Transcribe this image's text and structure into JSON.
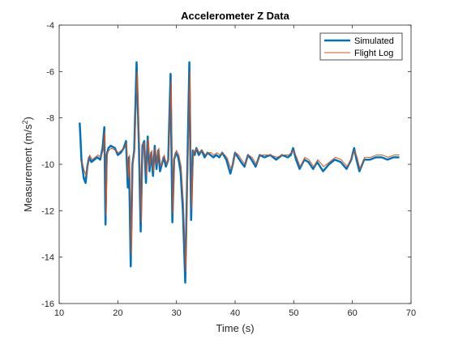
{
  "chart_data": {
    "type": "line",
    "title": "Accelerometer Z Data",
    "xlabel": "Time (s)",
    "ylabel": "Measurement  (m/s",
    "ylabel_sup": "2",
    "ylabel_end": ")",
    "xlim": [
      10,
      70
    ],
    "ylim": [
      -16,
      -4
    ],
    "xticks": [
      10,
      20,
      30,
      40,
      50,
      60,
      70
    ],
    "yticks": [
      -16,
      -14,
      -12,
      -10,
      -8,
      -6,
      -4
    ],
    "grid": false,
    "legend_position": "top-right",
    "series": [
      {
        "name": "Simulated",
        "color": "#0072BD",
        "x": [
          13.5,
          13.8,
          14.2,
          14.5,
          14.8,
          15.1,
          15.5,
          16.0,
          16.5,
          17.0,
          17.4,
          17.7,
          17.9,
          18.1,
          18.4,
          18.8,
          19.5,
          20.0,
          20.5,
          21.0,
          21.4,
          21.7,
          21.9,
          22.2,
          22.5,
          22.8,
          23.2,
          23.6,
          23.9,
          24.2,
          24.5,
          24.8,
          25.1,
          25.4,
          25.7,
          26.0,
          26.3,
          26.6,
          26.9,
          27.2,
          27.5,
          27.8,
          28.2,
          28.6,
          29.0,
          29.3,
          29.6,
          29.9,
          30.3,
          30.7,
          31.1,
          31.5,
          31.9,
          32.2,
          32.5,
          32.8,
          33.1,
          33.4,
          33.8,
          34.3,
          34.8,
          35.3,
          35.8,
          36.3,
          36.8,
          37.3,
          37.8,
          38.5,
          39.2,
          39.6,
          40.0,
          40.5,
          41.0,
          41.6,
          42.2,
          42.8,
          43.5,
          44.2,
          45.0,
          46.0,
          47.0,
          48.0,
          49.0,
          49.5,
          49.9,
          50.4,
          51.0,
          51.8,
          52.5,
          53.3,
          54.0,
          55.0,
          56.0,
          57.0,
          58.0,
          59.0,
          59.8,
          60.3,
          60.7,
          61.2,
          62.0,
          63.0,
          64.0,
          65.0,
          66.0,
          67.0,
          68.0
        ],
        "y": [
          -8.2,
          -9.8,
          -10.6,
          -10.8,
          -10.1,
          -9.7,
          -9.9,
          -9.8,
          -9.7,
          -9.8,
          -9.3,
          -8.4,
          -12.6,
          -9.6,
          -9.3,
          -9.2,
          -9.3,
          -9.6,
          -9.5,
          -9.3,
          -9.0,
          -11.0,
          -9.7,
          -14.4,
          -10.0,
          -9.4,
          -5.6,
          -9.2,
          -12.9,
          -9.2,
          -9.0,
          -10.8,
          -8.8,
          -10.3,
          -9.5,
          -10.5,
          -9.2,
          -10.2,
          -9.4,
          -10.3,
          -10.0,
          -9.7,
          -10.1,
          -9.8,
          -6.1,
          -12.5,
          -9.8,
          -9.5,
          -9.7,
          -10.3,
          -12.0,
          -15.1,
          -9.6,
          -5.6,
          -12.4,
          -9.4,
          -9.6,
          -9.3,
          -9.6,
          -9.4,
          -9.7,
          -9.5,
          -9.6,
          -9.7,
          -9.6,
          -9.7,
          -9.5,
          -9.8,
          -10.4,
          -10.0,
          -9.5,
          -9.7,
          -9.9,
          -10.1,
          -9.6,
          -9.8,
          -10.1,
          -9.6,
          -9.7,
          -9.6,
          -9.8,
          -9.6,
          -9.7,
          -9.6,
          -9.3,
          -9.8,
          -10.2,
          -9.8,
          -9.9,
          -10.2,
          -9.9,
          -10.3,
          -10.0,
          -9.8,
          -9.9,
          -10.2,
          -9.8,
          -9.3,
          -9.8,
          -10.3,
          -9.8,
          -9.8,
          -9.7,
          -9.7,
          -9.8,
          -9.7,
          -9.7
        ]
      },
      {
        "name": "Flight Log",
        "color": "#D95319",
        "x": [
          13.6,
          13.9,
          14.3,
          14.6,
          14.9,
          15.2,
          15.6,
          16.1,
          16.6,
          17.1,
          17.5,
          17.8,
          18.0,
          18.2,
          18.5,
          18.9,
          19.6,
          20.1,
          20.6,
          21.1,
          21.5,
          21.8,
          22.0,
          22.3,
          22.6,
          22.9,
          23.3,
          23.7,
          24.0,
          24.3,
          24.6,
          24.9,
          25.2,
          25.5,
          25.8,
          26.1,
          26.4,
          26.7,
          27.0,
          27.3,
          27.6,
          27.9,
          28.3,
          28.7,
          29.1,
          29.4,
          29.7,
          30.0,
          30.4,
          30.8,
          31.2,
          31.6,
          32.0,
          32.3,
          32.6,
          32.9,
          33.2,
          33.5,
          33.9,
          34.4,
          34.9,
          35.4,
          35.9,
          36.4,
          36.9,
          37.4,
          37.9,
          38.6,
          39.3,
          39.7,
          40.1,
          40.6,
          41.1,
          41.7,
          42.3,
          42.9,
          43.6,
          44.3,
          45.1,
          46.1,
          47.1,
          48.1,
          49.1,
          49.6,
          50.0,
          50.5,
          51.1,
          51.9,
          52.6,
          53.4,
          54.1,
          55.1,
          56.1,
          57.1,
          58.1,
          59.1,
          59.9,
          60.4,
          60.8,
          61.3,
          62.1,
          63.1,
          64.1,
          65.1,
          66.1,
          67.1,
          68.0
        ],
        "y": [
          -9.8,
          -9.9,
          -10.3,
          -10.5,
          -10.0,
          -9.6,
          -9.8,
          -9.7,
          -9.6,
          -9.7,
          -9.4,
          -8.6,
          -12.2,
          -9.5,
          -9.4,
          -9.3,
          -9.4,
          -9.5,
          -9.4,
          -9.3,
          -9.1,
          -10.6,
          -9.6,
          -13.9,
          -9.9,
          -9.3,
          -6.0,
          -9.1,
          -12.5,
          -9.1,
          -9.1,
          -10.5,
          -8.9,
          -10.1,
          -9.4,
          -10.3,
          -9.3,
          -10.0,
          -9.3,
          -10.1,
          -9.9,
          -9.6,
          -10.0,
          -9.7,
          -6.4,
          -12.1,
          -9.7,
          -9.4,
          -9.6,
          -10.1,
          -11.7,
          -14.6,
          -9.5,
          -6.0,
          -11.9,
          -9.4,
          -9.5,
          -9.3,
          -9.5,
          -9.4,
          -9.6,
          -9.5,
          -9.5,
          -9.6,
          -9.5,
          -9.6,
          -9.5,
          -9.7,
          -10.2,
          -9.9,
          -9.5,
          -9.6,
          -9.8,
          -10.0,
          -9.6,
          -9.7,
          -10.0,
          -9.6,
          -9.6,
          -9.6,
          -9.7,
          -9.6,
          -9.6,
          -9.5,
          -9.4,
          -9.7,
          -10.1,
          -9.7,
          -9.8,
          -10.1,
          -9.8,
          -10.1,
          -9.9,
          -9.7,
          -9.8,
          -10.1,
          -9.7,
          -9.4,
          -9.7,
          -10.2,
          -9.7,
          -9.7,
          -9.6,
          -9.6,
          -9.7,
          -9.6,
          -9.6
        ]
      }
    ]
  }
}
